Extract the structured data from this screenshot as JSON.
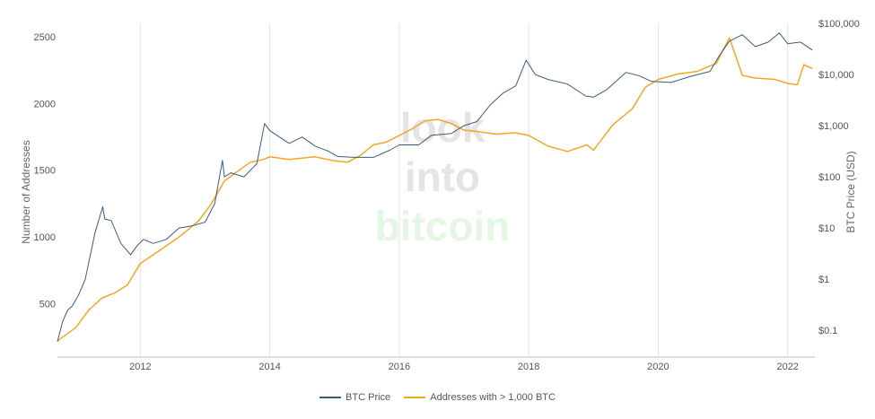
{
  "chart_data": {
    "type": "line",
    "x_ticks": [
      "2012",
      "2014",
      "2016",
      "2018",
      "2020",
      "2022"
    ],
    "y_left": {
      "label": "Number of Addresses",
      "ticks": [
        "500",
        "1000",
        "1500",
        "2000",
        "2500"
      ],
      "range": [
        100,
        2600
      ]
    },
    "y_right": {
      "label": "BTC Price (USD)",
      "scale": "log",
      "ticks": [
        "$0.1",
        "$1",
        "$10",
        "$100",
        "$1,000",
        "$10,000",
        "$100,000"
      ],
      "range": [
        0.03,
        100000
      ]
    },
    "x_range": [
      2010.72,
      2022.42
    ],
    "grid": "vertical",
    "legend_position": "bottom-center",
    "watermark": [
      "look",
      "into",
      "bitcoin"
    ],
    "series": [
      {
        "name": "BTC Price",
        "axis": "right",
        "color": "#3d5a7e",
        "x": [
          2010.72,
          2010.8,
          2010.88,
          2010.95,
          2011.05,
          2011.15,
          2011.3,
          2011.42,
          2011.45,
          2011.55,
          2011.7,
          2011.85,
          2011.95,
          2012.05,
          2012.2,
          2012.4,
          2012.6,
          2012.8,
          2013.0,
          2013.15,
          2013.27,
          2013.3,
          2013.4,
          2013.6,
          2013.8,
          2013.92,
          2014.0,
          2014.15,
          2014.3,
          2014.5,
          2014.7,
          2014.9,
          2015.05,
          2015.3,
          2015.6,
          2015.85,
          2016.0,
          2016.3,
          2016.5,
          2016.8,
          2017.0,
          2017.2,
          2017.4,
          2017.6,
          2017.8,
          2017.96,
          2018.1,
          2018.3,
          2018.6,
          2018.88,
          2019.0,
          2019.2,
          2019.5,
          2019.7,
          2019.9,
          2020.2,
          2020.5,
          2020.8,
          2020.95,
          2021.1,
          2021.3,
          2021.5,
          2021.7,
          2021.87,
          2022.0,
          2022.2,
          2022.38
        ],
        "y": [
          0.06,
          0.15,
          0.25,
          0.3,
          0.5,
          1.0,
          8.0,
          26.0,
          15.0,
          14.0,
          5.0,
          3.0,
          4.5,
          6.0,
          5.0,
          6.0,
          10.0,
          11.0,
          13.0,
          30.0,
          210.0,
          100.0,
          120.0,
          100.0,
          180.0,
          1100.0,
          800.0,
          600.0,
          450.0,
          600.0,
          400.0,
          320.0,
          250.0,
          240.0,
          240.0,
          330.0,
          420.0,
          420.0,
          650.0,
          700.0,
          1000.0,
          1200.0,
          2500.0,
          4300.0,
          6000.0,
          19000.0,
          10000.0,
          8000.0,
          6500.0,
          3800.0,
          3600.0,
          5000.0,
          11000.0,
          9500.0,
          7300.0,
          7000.0,
          9200.0,
          11500.0,
          24000.0,
          45000.0,
          60000.0,
          35000.0,
          43000.0,
          65000.0,
          40000.0,
          43000.0,
          30000.0
        ]
      },
      {
        "name": "Addresses with > 1,000 BTC",
        "axis": "left",
        "color": "#f5a623",
        "x": [
          2010.72,
          2010.8,
          2011.0,
          2011.2,
          2011.4,
          2011.6,
          2011.8,
          2012.0,
          2012.3,
          2012.6,
          2012.9,
          2013.1,
          2013.3,
          2013.5,
          2013.7,
          2013.9,
          2014.0,
          2014.3,
          2014.7,
          2015.0,
          2015.2,
          2015.4,
          2015.6,
          2015.8,
          2016.0,
          2016.2,
          2016.4,
          2016.6,
          2016.8,
          2017.0,
          2017.2,
          2017.5,
          2017.8,
          2018.0,
          2018.3,
          2018.6,
          2018.9,
          2019.0,
          2019.3,
          2019.6,
          2019.8,
          2020.0,
          2020.3,
          2020.6,
          2020.9,
          2021.0,
          2021.1,
          2021.3,
          2021.5,
          2021.8,
          2022.0,
          2022.15,
          2022.25,
          2022.38
        ],
        "y": [
          220,
          250,
          320,
          450,
          540,
          580,
          640,
          800,
          900,
          1000,
          1120,
          1250,
          1420,
          1490,
          1560,
          1580,
          1600,
          1580,
          1600,
          1570,
          1560,
          1610,
          1690,
          1710,
          1760,
          1810,
          1870,
          1880,
          1850,
          1800,
          1790,
          1770,
          1780,
          1760,
          1680,
          1640,
          1690,
          1650,
          1840,
          1960,
          2120,
          2180,
          2220,
          2240,
          2300,
          2400,
          2490,
          2210,
          2190,
          2180,
          2150,
          2140,
          2290,
          2260
        ]
      }
    ]
  }
}
